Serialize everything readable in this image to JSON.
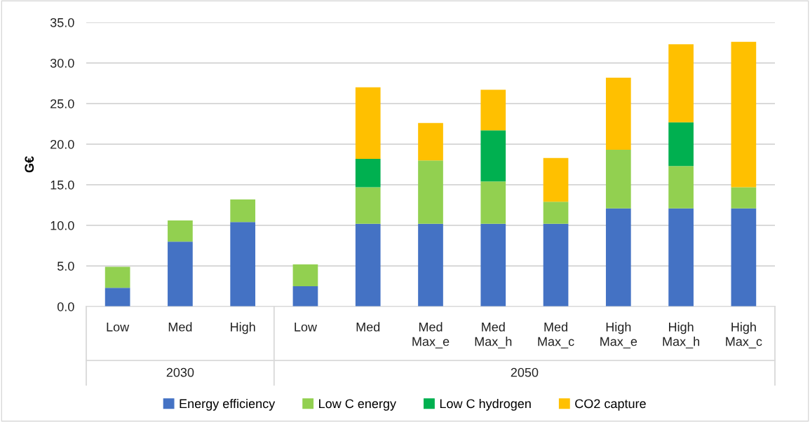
{
  "chart_data": {
    "type": "bar",
    "stacked": true,
    "ylabel": "G€",
    "categories": [
      "Low",
      "Med",
      "High",
      "Low",
      "Med",
      "Med\nMax_e",
      "Med\nMax_h",
      "Med\nMax_c",
      "High\nMax_e",
      "High\nMax_h",
      "High\nMax_c"
    ],
    "series": [
      {
        "name": "Energy efficiency",
        "color": "#4472c4",
        "values": [
          2.3,
          8.0,
          10.4,
          2.5,
          10.2,
          10.2,
          10.2,
          10.2,
          12.1,
          12.1,
          12.1
        ]
      },
      {
        "name": "Low C energy",
        "color": "#92d050",
        "values": [
          2.6,
          2.6,
          2.8,
          2.7,
          4.5,
          7.8,
          5.2,
          2.7,
          7.2,
          5.2,
          2.6
        ]
      },
      {
        "name": "Low C hydrogen",
        "color": "#00b050",
        "values": [
          null,
          null,
          null,
          null,
          3.5,
          null,
          6.3,
          null,
          null,
          5.4,
          null
        ]
      },
      {
        "name": "CO2 capture",
        "color": "#ffc000",
        "values": [
          null,
          null,
          null,
          null,
          8.8,
          4.6,
          5.0,
          5.4,
          8.9,
          9.6,
          17.9
        ]
      }
    ],
    "ylim": [
      0,
      35
    ],
    "yticks": [
      {
        "value": 0,
        "label": "0.0"
      },
      {
        "value": 5,
        "label": "5.0"
      },
      {
        "value": 10,
        "label": "10.0"
      },
      {
        "value": 15,
        "label": "15.0"
      },
      {
        "value": 20,
        "label": "20.0"
      },
      {
        "value": 25,
        "label": "25.0"
      },
      {
        "value": 30,
        "label": "30.0"
      },
      {
        "value": 35,
        "label": "35.0"
      }
    ],
    "grid": "y",
    "legend": "bottom",
    "annotations": [
      "2030",
      "2050"
    ]
  }
}
